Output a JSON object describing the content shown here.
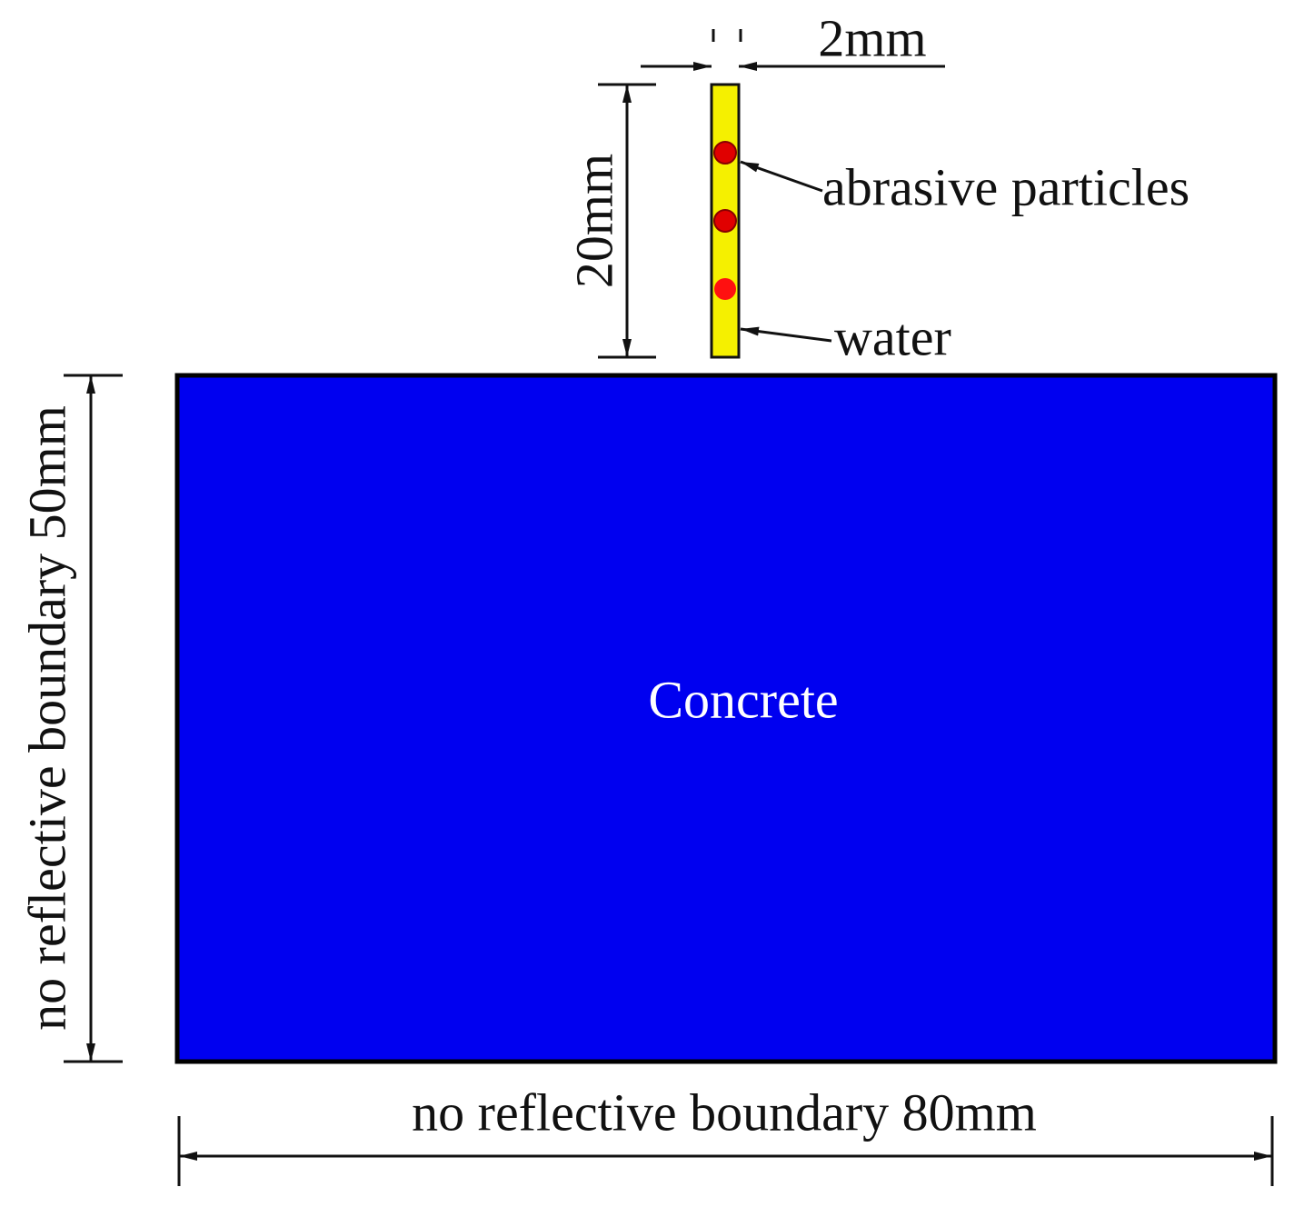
{
  "labels": {
    "width": "2mm",
    "height": "20mm",
    "particles": "abrasive particles",
    "water": "water",
    "material": "Concrete",
    "left_boundary": "no reflective boundary 50mm",
    "bottom_boundary": "no reflective boundary 80mm"
  }
}
